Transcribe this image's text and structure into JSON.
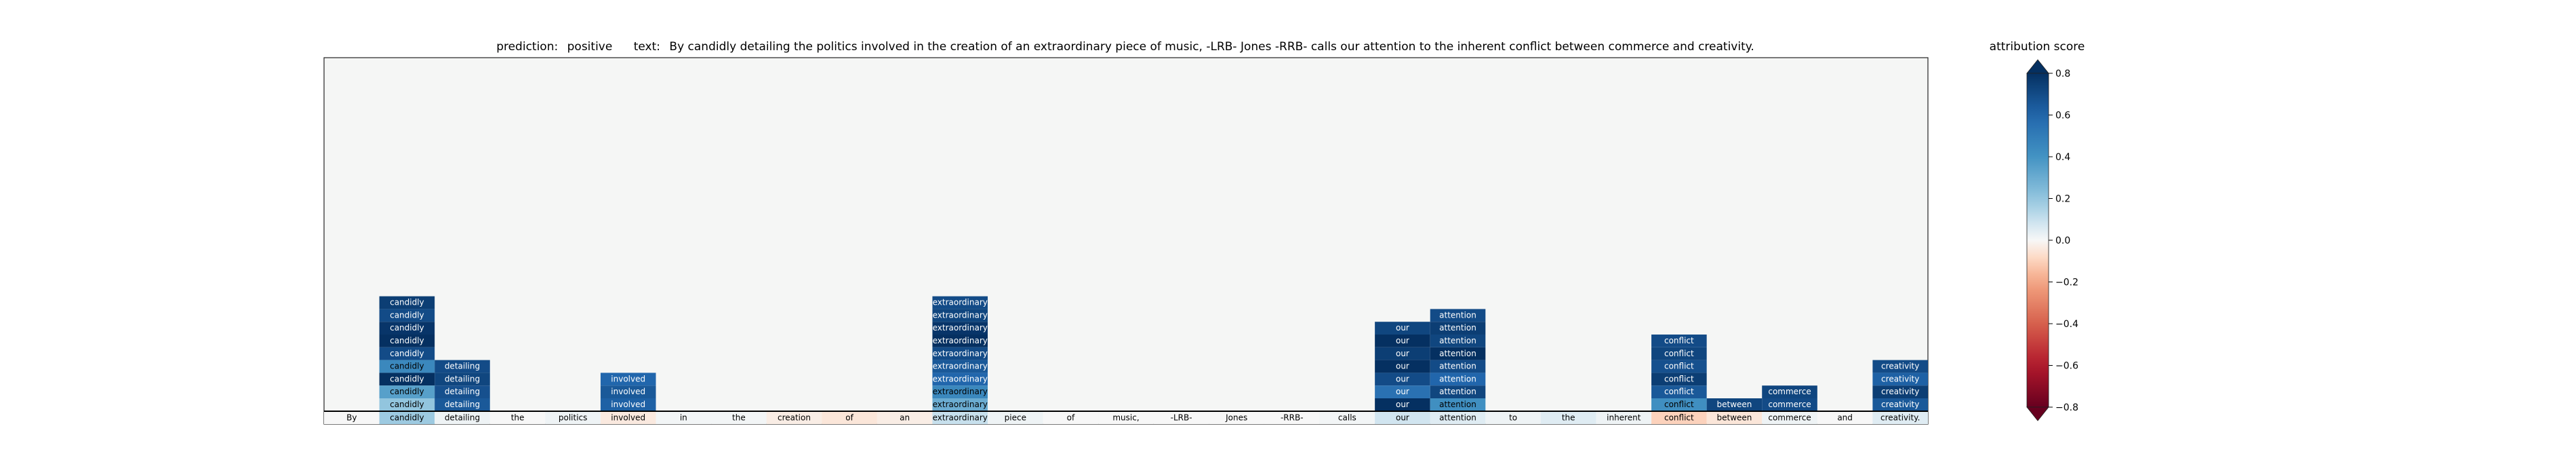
{
  "title": {
    "prediction_label": "prediction:",
    "prediction_value": "positive",
    "text_label": "text:",
    "text_value": "By candidly detailing the politics involved in the creation of an extraordinary piece of music, -LRB- Jones -RRB- calls our attention to the inherent conflict between commerce and creativity."
  },
  "colorbar": {
    "title": "attribution score",
    "ticks": [
      0.8,
      0.6,
      0.4,
      0.2,
      0.0,
      -0.2,
      -0.4,
      -0.6,
      -0.8
    ],
    "tick_labels": [
      "0.8",
      "0.6",
      "0.4",
      "0.2",
      "0.0",
      "−0.2",
      "−0.4",
      "−0.6",
      "−0.8"
    ],
    "range": [
      -0.8,
      0.8
    ],
    "colormap": "RdBu",
    "extend": "both"
  },
  "chart_data": {
    "type": "heatmap",
    "tokens": [
      "By",
      "candidly",
      "detailing",
      "the",
      "politics",
      "involved",
      "in",
      "the",
      "creation",
      "of",
      "an",
      "extraordinary",
      "piece",
      "of",
      "music,",
      "-LRB-",
      "Jones",
      "-RRB-",
      "calls",
      "our",
      "attention",
      "to",
      "the",
      "inherent",
      "conflict",
      "between",
      "commerce",
      "and",
      "creativity."
    ],
    "token_scores": [
      0.0,
      0.18,
      0.02,
      0.0,
      0.02,
      -0.04,
      0.01,
      0.01,
      -0.03,
      -0.05,
      -0.03,
      0.1,
      0.02,
      0.0,
      0.0,
      0.0,
      0.0,
      0.0,
      0.01,
      0.08,
      0.05,
      0.02,
      0.05,
      0.02,
      -0.1,
      -0.05,
      0.02,
      0.0,
      0.05
    ],
    "columns": [
      {
        "token_index": 1,
        "label": "candidly",
        "scores": [
          0.75,
          0.7,
          0.78,
          0.85,
          0.7,
          0.45,
          0.8,
          0.35,
          0.2
        ]
      },
      {
        "token_index": 2,
        "label": "detailing",
        "scores": [
          0.7,
          0.72,
          0.68,
          0.65
        ]
      },
      {
        "token_index": 5,
        "label": "involved",
        "scores": [
          0.6,
          0.65,
          0.62
        ]
      },
      {
        "token_index": 11,
        "label": "extraordinary",
        "scores": [
          0.7,
          0.72,
          0.78,
          0.82,
          0.7,
          0.65,
          0.6,
          0.45,
          0.3
        ]
      },
      {
        "token_index": 19,
        "label": "our",
        "scores": [
          0.72,
          0.8,
          0.75,
          0.85,
          0.7,
          0.55,
          0.82
        ]
      },
      {
        "token_index": 20,
        "label": "attention",
        "scores": [
          0.7,
          0.75,
          0.72,
          0.8,
          0.7,
          0.6,
          0.72,
          0.42
        ]
      },
      {
        "token_index": 24,
        "label": "conflict",
        "scores": [
          0.7,
          0.72,
          0.68,
          0.75,
          0.65,
          0.42
        ]
      },
      {
        "token_index": 25,
        "label": "between",
        "scores": [
          0.72
        ]
      },
      {
        "token_index": 26,
        "label": "commerce",
        "scores": [
          0.72,
          0.7
        ]
      },
      {
        "token_index": 28,
        "label": "creativity",
        "scores": [
          0.7,
          0.62,
          0.75,
          0.65
        ]
      }
    ]
  }
}
